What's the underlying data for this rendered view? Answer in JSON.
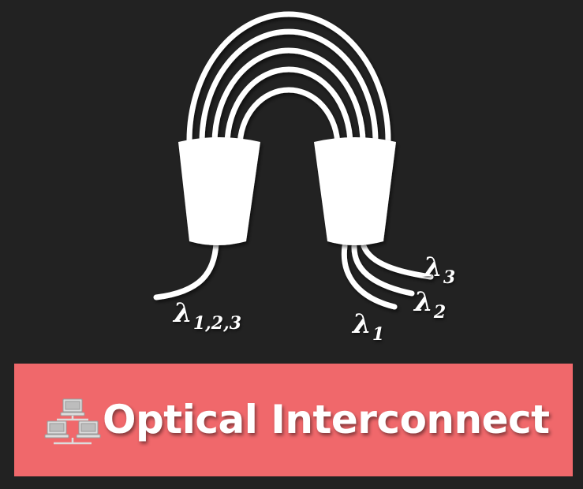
{
  "colors": {
    "background": "#222222",
    "banner": "#f0686b",
    "foreground": "#ffffff",
    "icon": "#dcdcdc"
  },
  "labels": {
    "combined": {
      "symbol": "λ",
      "sub": "1,2,3"
    },
    "lambda1": {
      "symbol": "λ",
      "sub": "1"
    },
    "lambda2": {
      "symbol": "λ",
      "sub": "2"
    },
    "lambda3": {
      "symbol": "λ",
      "sub": "3"
    }
  },
  "banner": {
    "icon": "network-computers-icon",
    "title": "Optical Interconnect"
  }
}
